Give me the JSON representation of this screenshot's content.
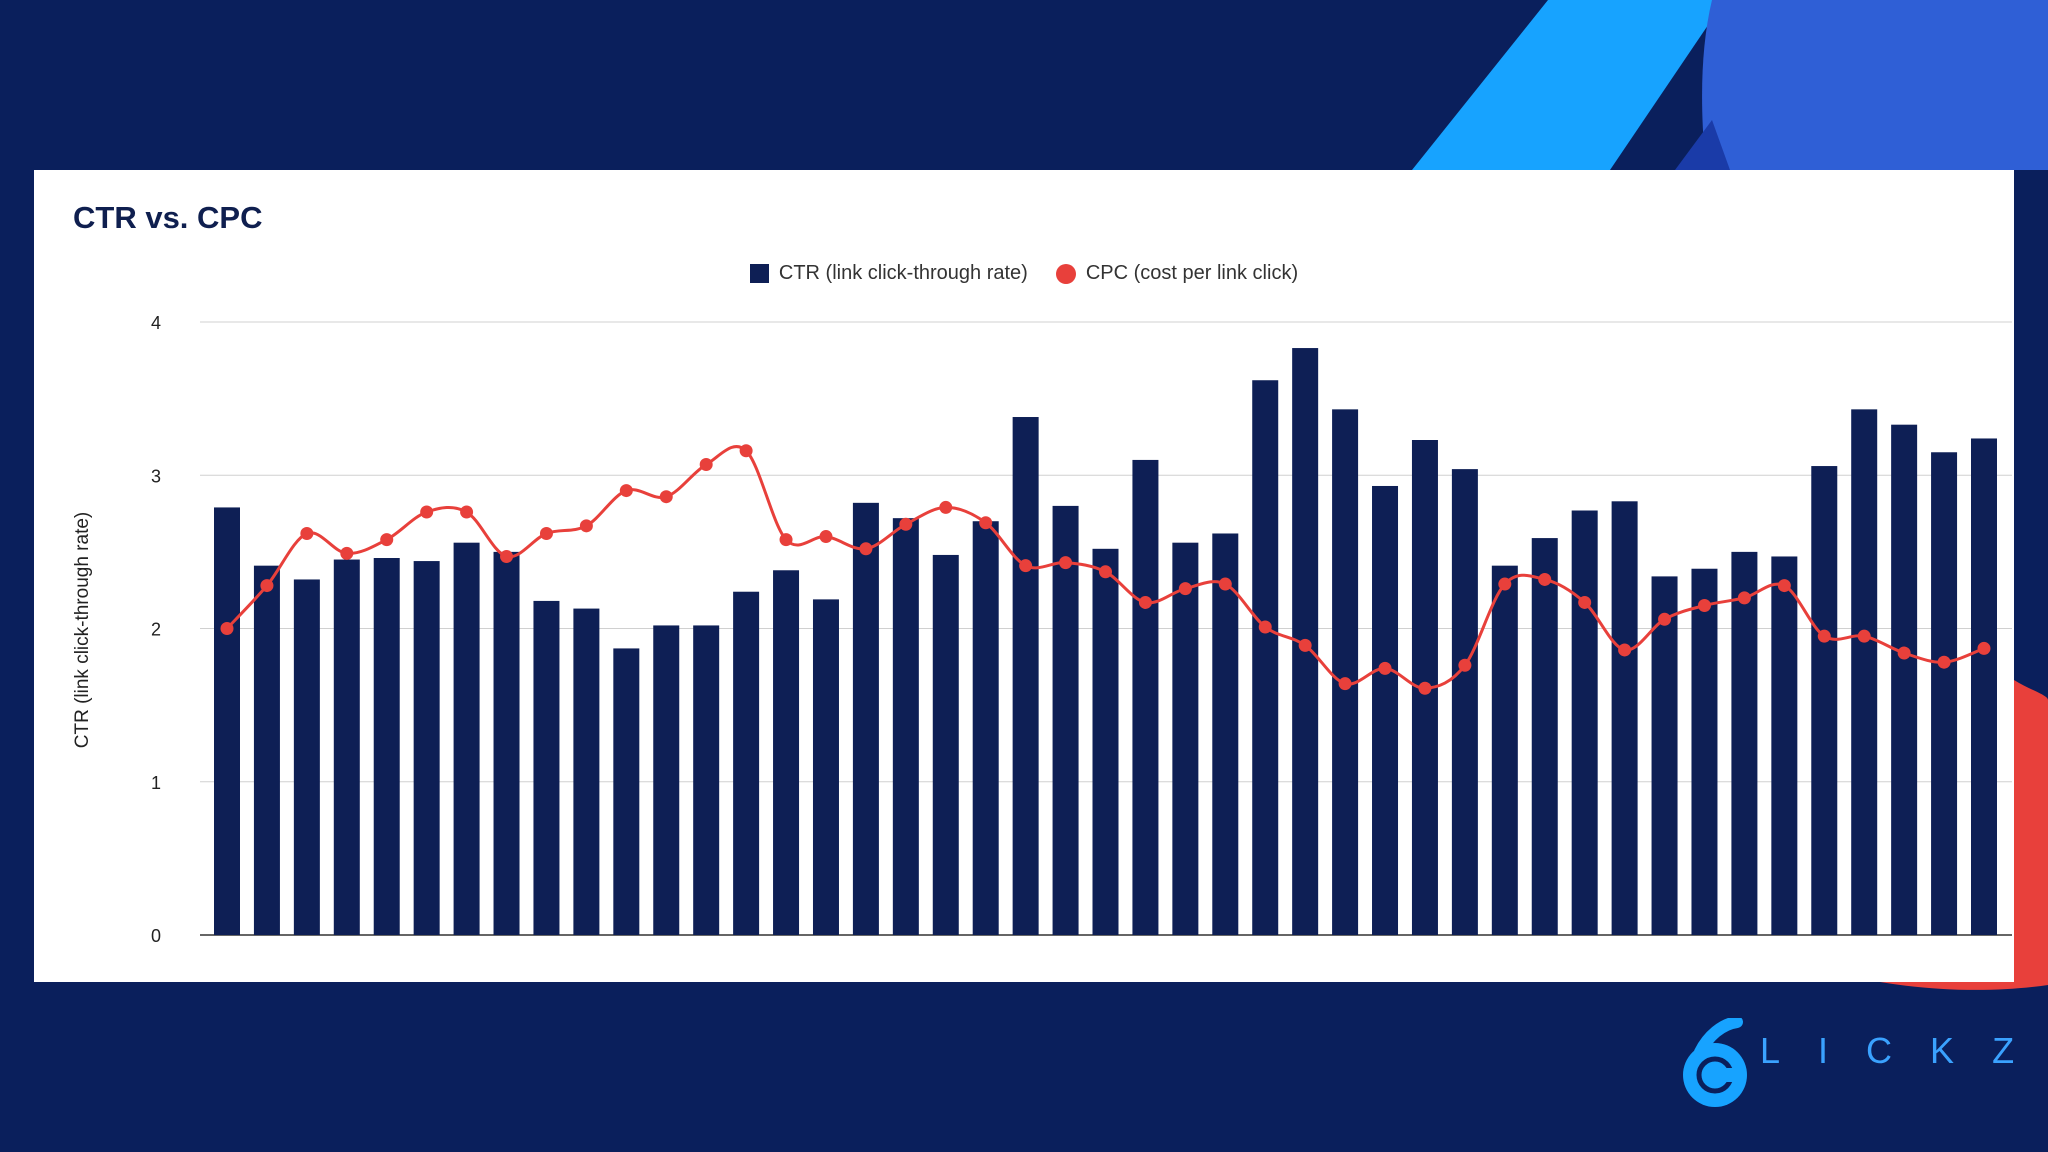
{
  "colors": {
    "background": "#0a1f5c",
    "bar": "#0e1f55",
    "line": "#e8403b",
    "deco_cyan": "#17a3ff",
    "deco_blue": "#2f5fd6",
    "deco_red": "#e8403b"
  },
  "logo": {
    "letters": [
      "L",
      "I",
      "C",
      "K",
      "Z"
    ],
    "mark": "6"
  },
  "chart_data": {
    "type": "bar",
    "title": "CTR vs. CPC",
    "ylabel": "CTR (link click-through rate)",
    "xlabel": "",
    "ylim": [
      0,
      4
    ],
    "yticks": [
      "0",
      "1",
      "2",
      "3",
      "4"
    ],
    "grid": true,
    "legend_position": "top-center",
    "series": [
      {
        "name": "CTR (link click-through rate)",
        "type": "bar",
        "values": [
          2.79,
          2.41,
          2.32,
          2.45,
          2.46,
          2.44,
          2.56,
          2.5,
          2.18,
          2.13,
          1.87,
          2.02,
          2.02,
          2.24,
          2.38,
          2.19,
          2.82,
          2.72,
          2.48,
          2.7,
          3.38,
          2.8,
          2.52,
          3.1,
          2.56,
          2.62,
          3.62,
          3.83,
          3.43,
          2.93,
          3.23,
          3.04,
          2.41,
          2.59,
          2.77,
          2.83,
          2.34,
          2.39,
          2.5,
          2.47,
          3.06,
          3.43,
          3.33,
          3.15,
          3.24
        ]
      },
      {
        "name": "CPC (cost per link click)",
        "type": "line",
        "values": [
          2.0,
          2.28,
          2.62,
          2.49,
          2.58,
          2.76,
          2.76,
          2.47,
          2.62,
          2.67,
          2.9,
          2.86,
          3.07,
          3.16,
          2.58,
          2.6,
          2.52,
          2.68,
          2.79,
          2.69,
          2.41,
          2.43,
          2.37,
          2.17,
          2.26,
          2.29,
          2.01,
          1.89,
          1.64,
          1.74,
          1.61,
          1.76,
          2.29,
          2.32,
          2.17,
          1.86,
          2.06,
          2.15,
          2.2,
          2.28,
          1.95,
          1.95,
          1.84,
          1.78,
          1.87
        ]
      }
    ]
  }
}
